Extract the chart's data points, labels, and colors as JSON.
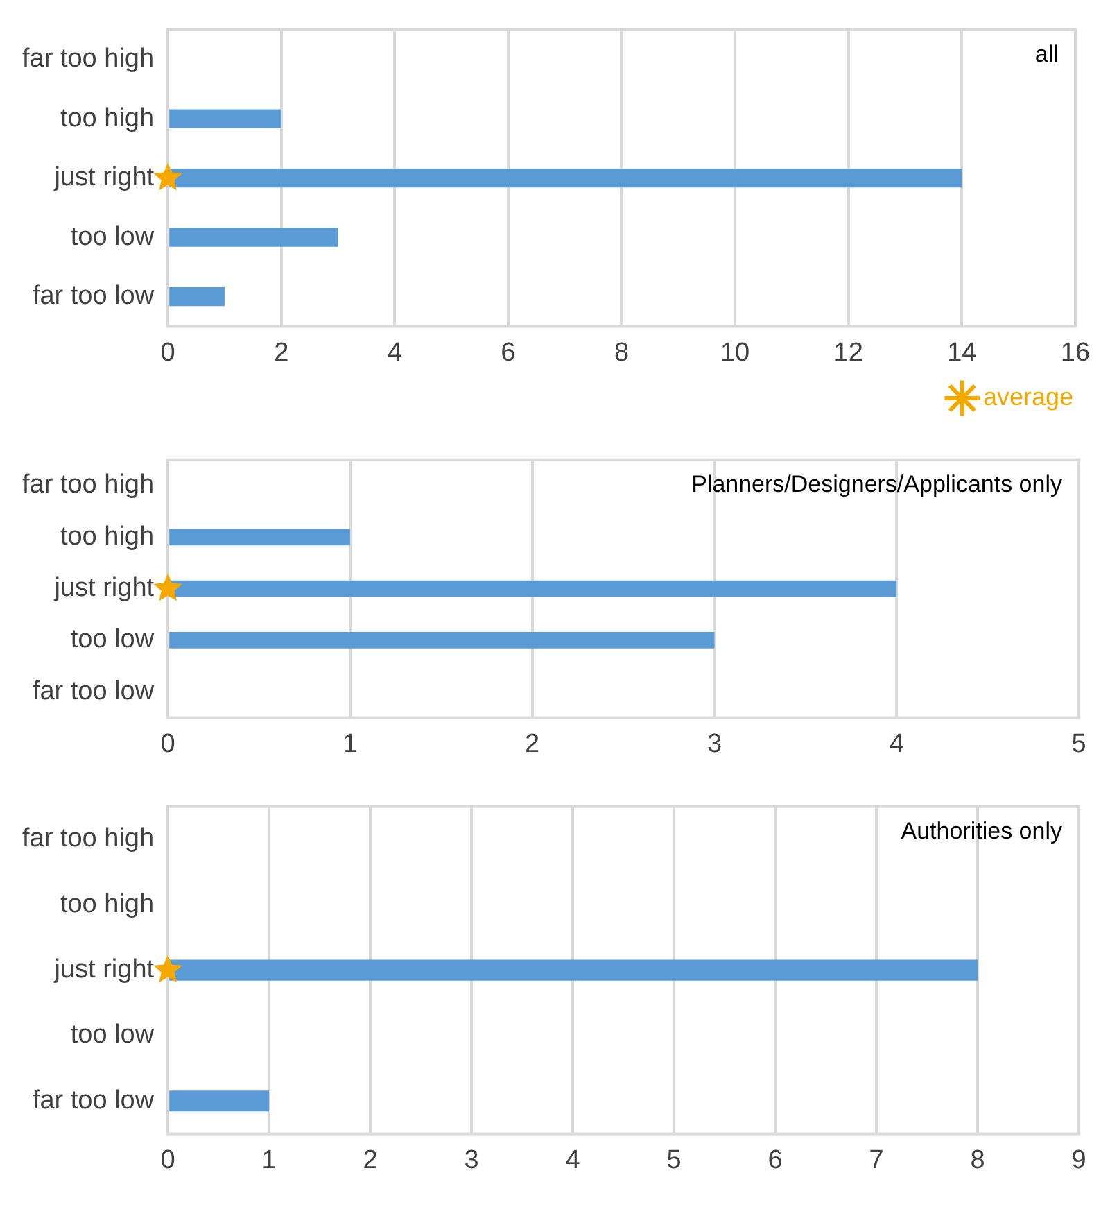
{
  "chart_data": [
    {
      "type": "bar",
      "orientation": "horizontal",
      "categories": [
        "far too high",
        "too high",
        "just right",
        "too low",
        "far too low"
      ],
      "series": [
        {
          "color": "#5b9bd5",
          "values": [
            0,
            2,
            14,
            3,
            1
          ]
        },
        {
          "name": "average",
          "type": "scatter",
          "marker": "star",
          "color": "#f5a800",
          "x": [
            "just right"
          ],
          "values": [
            0
          ]
        }
      ],
      "xlim": [
        0,
        16
      ],
      "xticks": [
        0,
        2,
        4,
        6,
        8,
        10,
        12,
        14,
        16
      ],
      "grid": "x",
      "legend": "bottom right",
      "annotations": [
        "all"
      ]
    },
    {
      "type": "bar",
      "orientation": "horizontal",
      "categories": [
        "far too high",
        "too high",
        "just right",
        "too low",
        "far too low"
      ],
      "series": [
        {
          "color": "#5b9bd5",
          "values": [
            0,
            1,
            4,
            3,
            0
          ]
        },
        {
          "type": "scatter",
          "marker": "star",
          "color": "#f5a800",
          "x": [
            "just right"
          ],
          "values": [
            0
          ]
        }
      ],
      "xlim": [
        0,
        5
      ],
      "xticks": [
        0,
        1,
        2,
        3,
        4,
        5
      ],
      "grid": "x",
      "legend": false,
      "annotations": [
        "Planners/Designers/Applicants only"
      ]
    },
    {
      "type": "bar",
      "orientation": "horizontal",
      "categories": [
        "far too high",
        "too high",
        "just right",
        "too low",
        "far too low"
      ],
      "series": [
        {
          "color": "#5b9bd5",
          "values": [
            0,
            0,
            8,
            0,
            1
          ]
        },
        {
          "type": "scatter",
          "marker": "star",
          "color": "#f5a800",
          "x": [
            "just right"
          ],
          "values": [
            0
          ]
        }
      ],
      "xlim": [
        0,
        9
      ],
      "xticks": [
        0,
        1,
        2,
        3,
        4,
        5,
        6,
        7,
        8,
        9
      ],
      "grid": "x",
      "legend": false,
      "annotations": [
        "Authorities only"
      ]
    }
  ]
}
